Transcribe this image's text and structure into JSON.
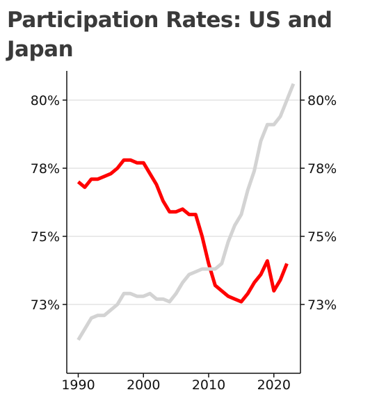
{
  "chart_data": {
    "type": "line",
    "title": "Participation Rates: US and Japan",
    "xlabel": "",
    "ylabel": "",
    "xlim": [
      1990,
      2023
    ],
    "ylim": [
      71.2,
      81.9
    ],
    "x_ticks": [
      1990,
      2000,
      2010,
      2020
    ],
    "x_tick_labels": [
      "1990",
      "2000",
      "2010",
      "2020"
    ],
    "y_ticks": [
      72.5,
      75,
      77.5,
      80
    ],
    "y_tick_labels": [
      "73%",
      "75%",
      "78%",
      "80%"
    ],
    "grid": "horizontal",
    "legend": "none",
    "series": [
      {
        "color": "#ff0000",
        "x": [
          1990,
          1991,
          1992,
          1993,
          1994,
          1995,
          1996,
          1997,
          1998,
          1999,
          2000,
          2001,
          2002,
          2003,
          2004,
          2005,
          2006,
          2007,
          2008,
          2009,
          2010,
          2011,
          2012,
          2013,
          2014,
          2015,
          2016,
          2017,
          2018,
          2019,
          2020,
          2021,
          2022
        ],
        "values": [
          77.0,
          76.8,
          77.1,
          77.1,
          77.2,
          77.3,
          77.5,
          77.8,
          77.8,
          77.7,
          77.7,
          77.3,
          76.9,
          76.3,
          75.9,
          75.9,
          76.0,
          75.8,
          75.8,
          75.0,
          74.0,
          73.2,
          73.0,
          72.8,
          72.7,
          72.6,
          72.9,
          73.3,
          73.6,
          74.1,
          73.0,
          73.4,
          74.0
        ]
      },
      {
        "color": "#d3d3d3",
        "x": [
          1990,
          1991,
          1992,
          1993,
          1994,
          1995,
          1996,
          1997,
          1998,
          1999,
          2000,
          2001,
          2002,
          2003,
          2004,
          2005,
          2006,
          2007,
          2008,
          2009,
          2010,
          2011,
          2012,
          2013,
          2014,
          2015,
          2016,
          2017,
          2018,
          2019,
          2020,
          2021,
          2022,
          2023
        ],
        "values": [
          71.2,
          71.6,
          72.0,
          72.1,
          72.1,
          72.3,
          72.5,
          72.9,
          72.9,
          72.8,
          72.8,
          72.9,
          72.7,
          72.7,
          72.6,
          72.9,
          73.3,
          73.6,
          73.7,
          73.8,
          73.8,
          73.8,
          74.0,
          74.8,
          75.4,
          75.8,
          76.7,
          77.4,
          78.5,
          79.1,
          79.1,
          79.4,
          80.0,
          80.6
        ]
      }
    ]
  }
}
